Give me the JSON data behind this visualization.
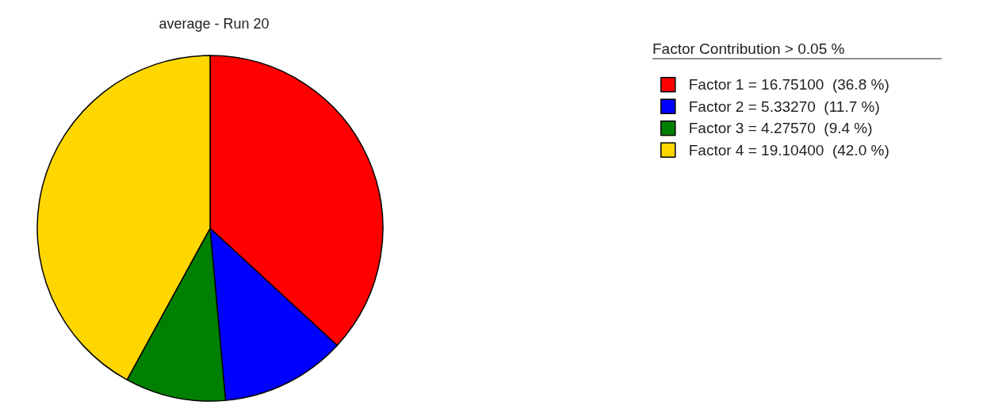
{
  "chart_data": {
    "type": "pie",
    "title": "average - Run 20",
    "legend_title": "Factor Contribution > 0.05 %",
    "categories": [
      "Factor 1 = 16.75100  (36.8 %)",
      "Factor 2 = 5.33270  (11.7 %)",
      "Factor 3 = 4.27570  (9.4 %)",
      "Factor 4 = 19.10400  (42.0 %)"
    ],
    "values": [
      16.751,
      5.3327,
      4.2757,
      19.104
    ],
    "colors": [
      "#ff0000",
      "#0000ff",
      "#008000",
      "#ffd700"
    ],
    "legend": "top right"
  }
}
